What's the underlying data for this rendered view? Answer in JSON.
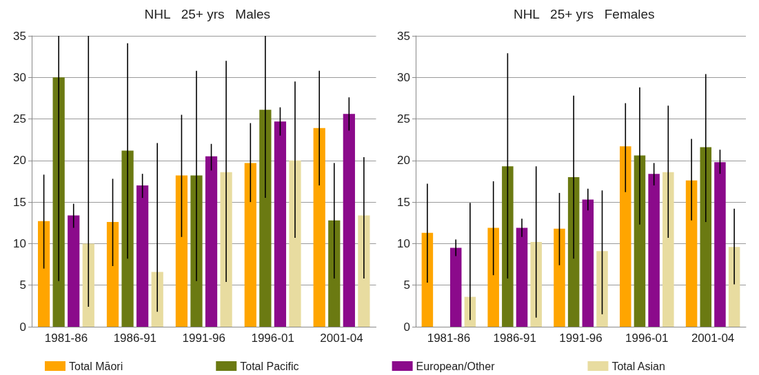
{
  "chart_data": [
    {
      "type": "bar",
      "title": "NHL   25+ yrs   Males",
      "categories": [
        "1981-86",
        "1986-91",
        "1991-96",
        "1996-01",
        "2001-04"
      ],
      "ylim": [
        0,
        35
      ],
      "yticks": [
        0,
        5,
        10,
        15,
        20,
        25,
        30,
        35
      ],
      "grid": "y",
      "legend": "bottom",
      "series": [
        {
          "name": "Total Māori",
          "color": "#ffa500",
          "values": [
            12.7,
            12.6,
            18.2,
            19.7,
            23.9
          ],
          "errors": [
            [
              7,
              18.3
            ],
            [
              7.3,
              17.8
            ],
            [
              10.8,
              25.5
            ],
            [
              15,
              24.5
            ],
            [
              17,
              30.8
            ]
          ]
        },
        {
          "name": "Total Pacific",
          "color": "#6b7a12",
          "values": [
            30,
            21.2,
            18.2,
            26.1,
            12.8
          ],
          "errors": [
            [
              5.5,
              35
            ],
            [
              8.2,
              34.1
            ],
            [
              5.5,
              30.8
            ],
            [
              15.5,
              35
            ],
            [
              5.8,
              19.7
            ]
          ]
        },
        {
          "name": "European/Other",
          "color": "#8b0a8b",
          "values": [
            13.4,
            17,
            20.5,
            24.7,
            25.6
          ],
          "errors": [
            [
              11.9,
              14.8
            ],
            [
              15.5,
              18.4
            ],
            [
              18.8,
              22
            ],
            [
              23,
              26.4
            ],
            [
              23.6,
              27.6
            ]
          ]
        },
        {
          "name": "Total Asian",
          "color": "#e8dca0",
          "values": [
            10,
            6.6,
            18.6,
            20,
            13.4
          ],
          "errors": [
            [
              2.4,
              35
            ],
            [
              1.8,
              22.1
            ],
            [
              5.4,
              32
            ],
            [
              10.7,
              29.5
            ],
            [
              5.8,
              20.4
            ]
          ]
        }
      ]
    },
    {
      "type": "bar",
      "title": "NHL   25+ yrs   Females",
      "categories": [
        "1981-86",
        "1986-91",
        "1991-96",
        "1996-01",
        "2001-04"
      ],
      "ylim": [
        0,
        35
      ],
      "yticks": [
        0,
        5,
        10,
        15,
        20,
        25,
        30,
        35
      ],
      "grid": "y",
      "series": [
        {
          "color": "#ffa500",
          "values": [
            11.3,
            11.9,
            11.8,
            21.7,
            17.6
          ],
          "errors": [
            [
              5.3,
              17.2
            ],
            [
              6.2,
              17.5
            ],
            [
              7.4,
              16.1
            ],
            [
              16.2,
              26.9
            ],
            [
              12.8,
              22.6
            ]
          ]
        },
        {
          "color": "#6b7a12",
          "values": [
            null,
            19.3,
            18,
            20.6,
            21.6
          ],
          "errors": [
            null,
            [
              5.8,
              32.9
            ],
            [
              8.2,
              27.8
            ],
            [
              12.3,
              28.8
            ],
            [
              12.6,
              30.4
            ]
          ]
        },
        {
          "color": "#8b0a8b",
          "values": [
            9.5,
            11.9,
            15.3,
            18.4,
            19.8
          ],
          "errors": [
            [
              8.5,
              10.5
            ],
            [
              10.8,
              13
            ],
            [
              14,
              16.6
            ],
            [
              17,
              19.7
            ],
            [
              18.4,
              21.3
            ]
          ]
        },
        {
          "color": "#e8dca0",
          "values": [
            3.6,
            10.2,
            9.1,
            18.6,
            9.6
          ],
          "errors": [
            [
              0.8,
              14.9
            ],
            [
              1.1,
              19.3
            ],
            [
              1.5,
              16.4
            ],
            [
              10.7,
              26.6
            ],
            [
              5.1,
              14.2
            ]
          ]
        }
      ]
    }
  ]
}
